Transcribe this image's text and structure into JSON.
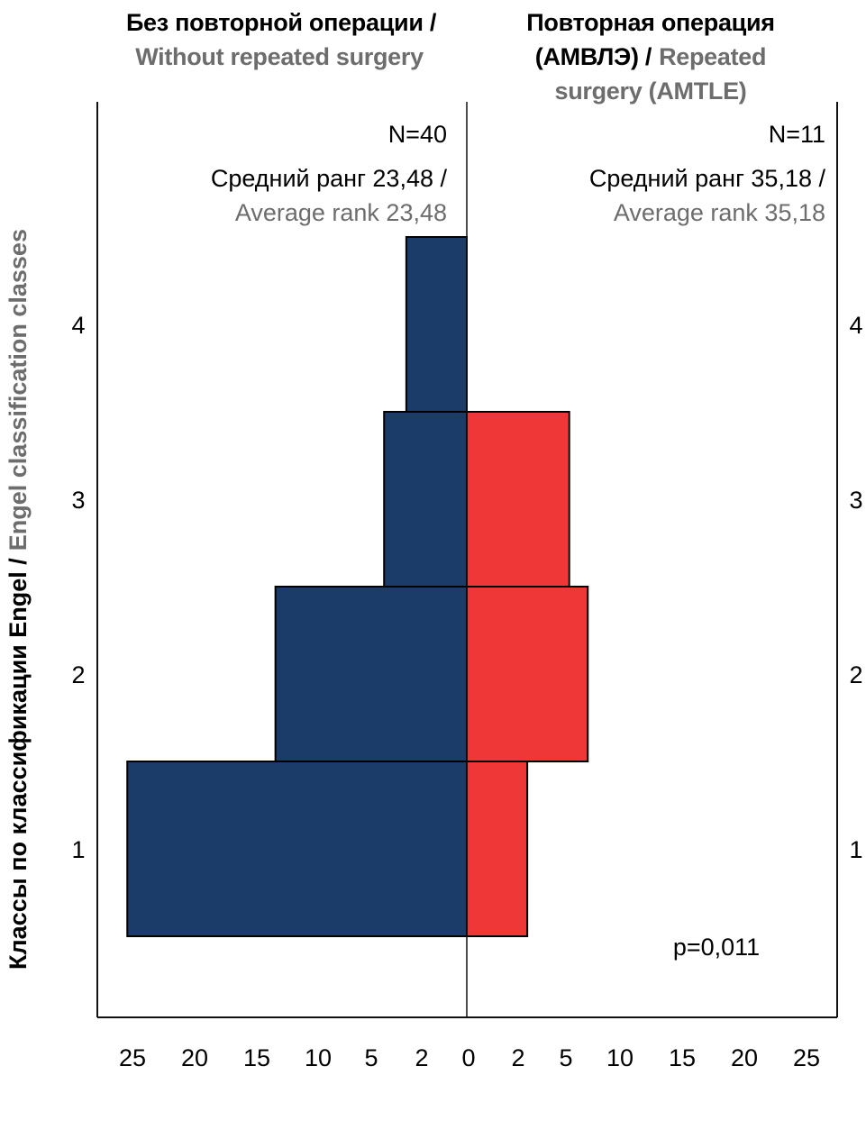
{
  "chart_data": {
    "type": "bar",
    "orientation": "horizontal",
    "layout": "back-to-back",
    "ylabel_ru": "Классы по классификации Engel /",
    "ylabel_en": "Engel classification classes",
    "categories": [
      "1",
      "2",
      "3",
      "4"
    ],
    "left_ticks": [
      "25",
      "20",
      "15",
      "10",
      "5",
      "2",
      "0"
    ],
    "right_ticks": [
      "2",
      "5",
      "10",
      "15",
      "20",
      "25"
    ],
    "annotation": "p=0,011",
    "panels": [
      {
        "side": "left",
        "title_ru": "Без повторной операции /",
        "title_en": "Without repeated surgery",
        "n_label": "N=40",
        "rank_ru": "Средний ранг 23,48 /",
        "rank_en": "Average rank 23,48",
        "color": "#1b3b69",
        "values": [
          27.5,
          15.5,
          6.7,
          4.9
        ]
      },
      {
        "side": "right",
        "title_ru": "Повторная операция",
        "title_ru_2": "(АМВЛЭ) /",
        "title_en": "Repeated",
        "title_en_2": "surgery (AMTLE)",
        "n_label": "N=11",
        "rank_ru": "Средний ранг 35,18 /",
        "rank_en": "Average rank 35,18",
        "color": "#ef3737",
        "values": [
          4.9,
          9.8,
          8.3,
          0
        ]
      }
    ]
  },
  "colors": {
    "en_text": "#6d6d6d",
    "axis": "#111111",
    "bar_stroke": "#000000"
  }
}
